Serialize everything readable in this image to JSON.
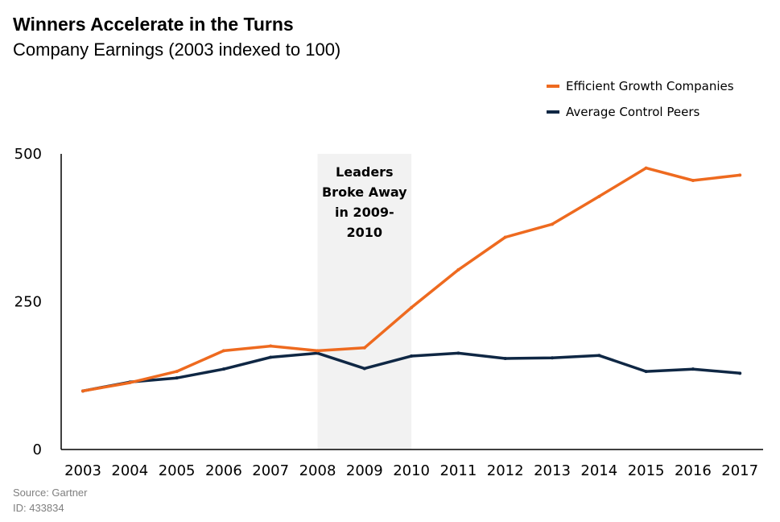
{
  "chart_data": {
    "type": "line",
    "title": "Winners Accelerate in the Turns",
    "subtitle": "Company Earnings (2003 indexed to 100)",
    "categories": [
      "2003",
      "2004",
      "2005",
      "2006",
      "2007",
      "2008",
      "2009",
      "2010",
      "2011",
      "2012",
      "2013",
      "2014",
      "2015",
      "2016",
      "2017"
    ],
    "series": [
      {
        "name": "Efficient Growth Companies",
        "color": "#ee6a1f",
        "values": [
          99,
          113,
          132,
          167,
          175,
          167,
          172,
          240,
          304,
          359,
          381,
          428,
          476,
          455,
          464
        ]
      },
      {
        "name": "Average Control Peers",
        "color": "#0f2744",
        "values": [
          99,
          114,
          121,
          136,
          156,
          163,
          137,
          158,
          163,
          154,
          155,
          159,
          132,
          136,
          129
        ]
      }
    ],
    "ylim": [
      0,
      500
    ],
    "yticks": [
      "0",
      "250",
      "500"
    ],
    "xlabel": "",
    "ylabel": "",
    "legend": "top-right",
    "highlight": {
      "from": "2008",
      "to": "2010",
      "color": "#f2f2f2",
      "label_lines": [
        "Leaders",
        "Broke Away",
        "in 2009-",
        "2010"
      ]
    }
  },
  "source": "Source: Gartner",
  "id_label": "ID: 433834"
}
